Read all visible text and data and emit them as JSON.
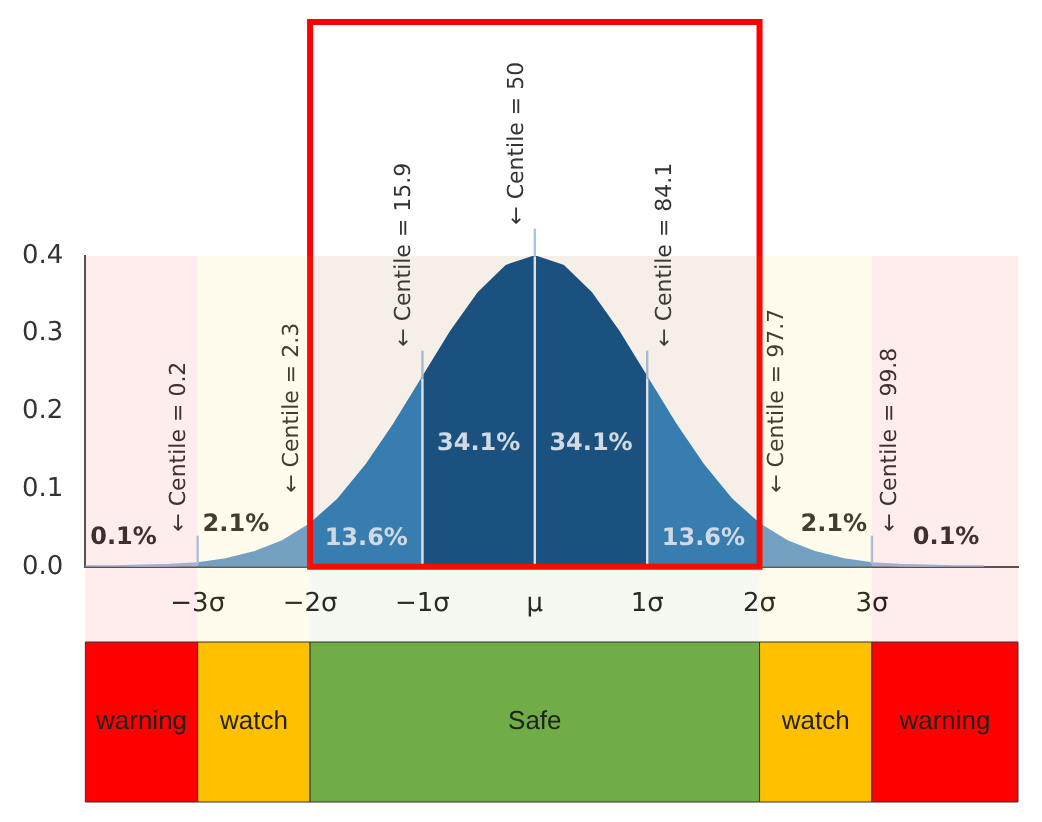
{
  "chart_data": {
    "type": "area",
    "xlim": [
      -4,
      4.3
    ],
    "ylim": [
      0,
      0.4
    ],
    "xticks": [
      {
        "value": -3,
        "label": "−3σ"
      },
      {
        "value": -2,
        "label": "−2σ"
      },
      {
        "value": -1,
        "label": "−1σ"
      },
      {
        "value": 0,
        "label": "μ"
      },
      {
        "value": 1,
        "label": "1σ"
      },
      {
        "value": 2,
        "label": "2σ"
      },
      {
        "value": 3,
        "label": "3σ"
      }
    ],
    "yticks": [
      {
        "value": 0,
        "label": "0.0"
      },
      {
        "value": 0.1,
        "label": "0.1"
      },
      {
        "value": 0.2,
        "label": "0.2"
      },
      {
        "value": 0.3,
        "label": "0.3"
      },
      {
        "value": 0.4,
        "label": "0.4"
      }
    ],
    "grid": false,
    "legend": false,
    "series": [
      {
        "color": "#9dbfe0",
        "x": [
          -4,
          -3.75,
          -3.5,
          -3.25,
          -3
        ],
        "values": [
          0.0,
          0.0,
          0.001,
          0.002,
          0.004
        ]
      },
      {
        "color": "#6a9fd0",
        "x": [
          -3,
          -2.75,
          -2.5,
          -2.25,
          -2
        ],
        "values": [
          0.004,
          0.009,
          0.018,
          0.032,
          0.054
        ]
      },
      {
        "color": "#2b7fc0",
        "x": [
          -2,
          -1.75,
          -1.5,
          -1.25,
          -1
        ],
        "values": [
          0.054,
          0.086,
          0.13,
          0.183,
          0.242
        ]
      },
      {
        "color": "#0b4f8a",
        "x": [
          -1,
          -0.75,
          -0.5,
          -0.25,
          0
        ],
        "values": [
          0.242,
          0.301,
          0.352,
          0.387,
          0.399
        ]
      },
      {
        "color": "#0b4f8a",
        "x": [
          0,
          0.25,
          0.5,
          0.75,
          1
        ],
        "values": [
          0.399,
          0.387,
          0.352,
          0.301,
          0.242
        ]
      },
      {
        "color": "#2b7fc0",
        "x": [
          1,
          1.25,
          1.5,
          1.75,
          2
        ],
        "values": [
          0.242,
          0.183,
          0.13,
          0.086,
          0.054
        ]
      },
      {
        "color": "#6a9fd0",
        "x": [
          2,
          2.25,
          2.5,
          2.75,
          3
        ],
        "values": [
          0.054,
          0.032,
          0.018,
          0.009,
          0.004
        ]
      },
      {
        "color": "#9dbfe0",
        "x": [
          3,
          3.25,
          3.5,
          3.75,
          4
        ],
        "values": [
          0.004,
          0.002,
          0.001,
          0.0,
          0.0
        ]
      }
    ],
    "ref_lines": [
      {
        "axis": "x",
        "value": -1,
        "color": "#e8f0fa"
      },
      {
        "axis": "x",
        "value": 0,
        "color": "#e8f0fa"
      },
      {
        "axis": "x",
        "value": 1,
        "color": "#e8f0fa"
      }
    ],
    "bands": [
      {
        "axis": "x",
        "from": -2,
        "to": 2,
        "color": "#ff0000"
      },
      {
        "axis": "x",
        "from": -4,
        "to": -3,
        "label": "warning",
        "color": "#ff0000"
      },
      {
        "axis": "x",
        "from": -3,
        "to": -2,
        "label": "watch",
        "color": "#ffc000"
      },
      {
        "axis": "x",
        "from": -2,
        "to": 2,
        "label": "Safe",
        "color": "#70ad47"
      },
      {
        "axis": "x",
        "from": 2,
        "to": 3,
        "label": "watch",
        "color": "#ffc000"
      },
      {
        "axis": "x",
        "from": 3,
        "to": 4.3,
        "label": "warning",
        "color": "#ff0000"
      }
    ],
    "annotations": [
      "0.1%",
      "2.1%",
      "13.6%",
      "34.1%",
      "34.1%",
      "13.6%",
      "2.1%",
      "0.1%",
      {
        "text": "← Centile = 0.2",
        "x": -3,
        "y": 0.004
      },
      {
        "text": "← Centile = 2.3",
        "x": -2,
        "y": 0.054
      },
      {
        "text": "← Centile = 15.9",
        "x": -1,
        "y": 0.242
      },
      {
        "text": "← Centile = 50",
        "x": 0,
        "y": 0.399
      },
      {
        "text": "← Centile = 84.1",
        "x": 1,
        "y": 0.242
      },
      {
        "text": "← Centile = 97.7",
        "x": 2,
        "y": 0.054
      },
      {
        "text": "← Centile = 99.8",
        "x": 3,
        "y": 0.004
      }
    ]
  }
}
